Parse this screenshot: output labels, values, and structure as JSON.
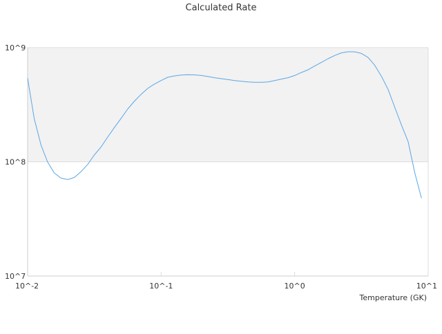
{
  "chart_data": {
    "type": "line",
    "title": "Calculated Rate",
    "xlabel": "Temperature (GK)",
    "ylabel": "",
    "x_scale": "log",
    "y_scale": "log",
    "xlim": [
      0.01,
      10
    ],
    "ylim": [
      10000000,
      1000000000
    ],
    "x_ticks": [
      {
        "value": 0.01,
        "label": "10^-2"
      },
      {
        "value": 0.1,
        "label": "10^-1"
      },
      {
        "value": 1,
        "label": "10^0"
      },
      {
        "value": 10,
        "label": "10^1"
      }
    ],
    "y_ticks": [
      {
        "value": 10000000,
        "label": "10^7"
      },
      {
        "value": 100000000,
        "label": "10^8"
      },
      {
        "value": 1000000000,
        "label": "10^9"
      }
    ],
    "grid": true,
    "legend": "none",
    "colors": {
      "line": "#5aa5e6",
      "band": "#f2f2f2",
      "grid": "#dddddd",
      "axis": "#cccccc",
      "text": "#333333"
    },
    "series": [
      {
        "x": [
          0.01,
          0.0112,
          0.0126,
          0.0141,
          0.0158,
          0.0178,
          0.02,
          0.0224,
          0.0251,
          0.0282,
          0.0316,
          0.0355,
          0.0398,
          0.0447,
          0.0501,
          0.0562,
          0.0631,
          0.0708,
          0.0794,
          0.0891,
          0.1,
          0.112,
          0.126,
          0.141,
          0.158,
          0.178,
          0.2,
          0.224,
          0.251,
          0.282,
          0.316,
          0.355,
          0.398,
          0.447,
          0.501,
          0.562,
          0.631,
          0.708,
          0.794,
          0.891,
          1.0,
          1.12,
          1.26,
          1.41,
          1.58,
          1.78,
          2.0,
          2.24,
          2.51,
          2.82,
          3.16,
          3.55,
          3.98,
          4.47,
          5.01,
          5.62,
          6.31,
          7.08,
          7.94,
          8.91
        ],
        "y": [
          540000000,
          240000000,
          140000000,
          100000000,
          80000000,
          72000000,
          70000000,
          73000000,
          82000000,
          95000000,
          115000000,
          135000000,
          165000000,
          200000000,
          240000000,
          290000000,
          340000000,
          390000000,
          440000000,
          480000000,
          515000000,
          550000000,
          565000000,
          575000000,
          580000000,
          577000000,
          570000000,
          558000000,
          545000000,
          535000000,
          525000000,
          515000000,
          508000000,
          500000000,
          497000000,
          497000000,
          500000000,
          515000000,
          530000000,
          545000000,
          570000000,
          605000000,
          640000000,
          690000000,
          740000000,
          800000000,
          855000000,
          900000000,
          920000000,
          918000000,
          890000000,
          820000000,
          700000000,
          560000000,
          430000000,
          300000000,
          210000000,
          150000000,
          80000000,
          48000000
        ]
      }
    ]
  }
}
